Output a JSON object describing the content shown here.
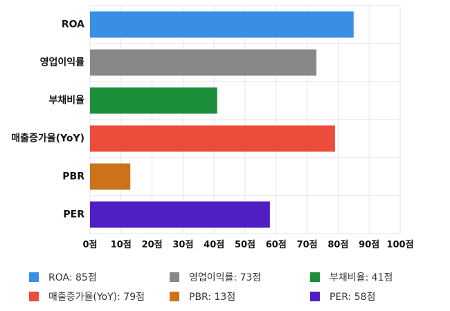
{
  "chart_data": {
    "type": "bar",
    "orientation": "horizontal",
    "categories": [
      "ROA",
      "영업이익률",
      "부채비율",
      "매출증가율(YoY)",
      "PBR",
      "PER"
    ],
    "values": [
      85,
      73,
      41,
      79,
      13,
      58
    ],
    "colors": [
      "#3a8ee6",
      "#888888",
      "#1b8f3a",
      "#ec4c3a",
      "#cc7319",
      "#4f1fc4"
    ],
    "xlim": [
      0,
      100
    ],
    "xticks": [
      "0점",
      "10점",
      "20점",
      "30점",
      "40점",
      "50점",
      "60점",
      "70점",
      "80점",
      "90점",
      "100점"
    ],
    "grid": true,
    "legend_position": "bottom",
    "title": "",
    "xlabel": "",
    "ylabel": ""
  },
  "legend": {
    "items": [
      {
        "label": "ROA: 85점",
        "color": "#3a8ee6"
      },
      {
        "label": "영업이익률: 73점",
        "color": "#888888"
      },
      {
        "label": "부채비율: 41점",
        "color": "#1b8f3a"
      },
      {
        "label": "매출증가율(YoY): 79점",
        "color": "#ec4c3a"
      },
      {
        "label": "PBR: 13점",
        "color": "#cc7319"
      },
      {
        "label": "PER: 58점",
        "color": "#4f1fc4"
      }
    ]
  }
}
